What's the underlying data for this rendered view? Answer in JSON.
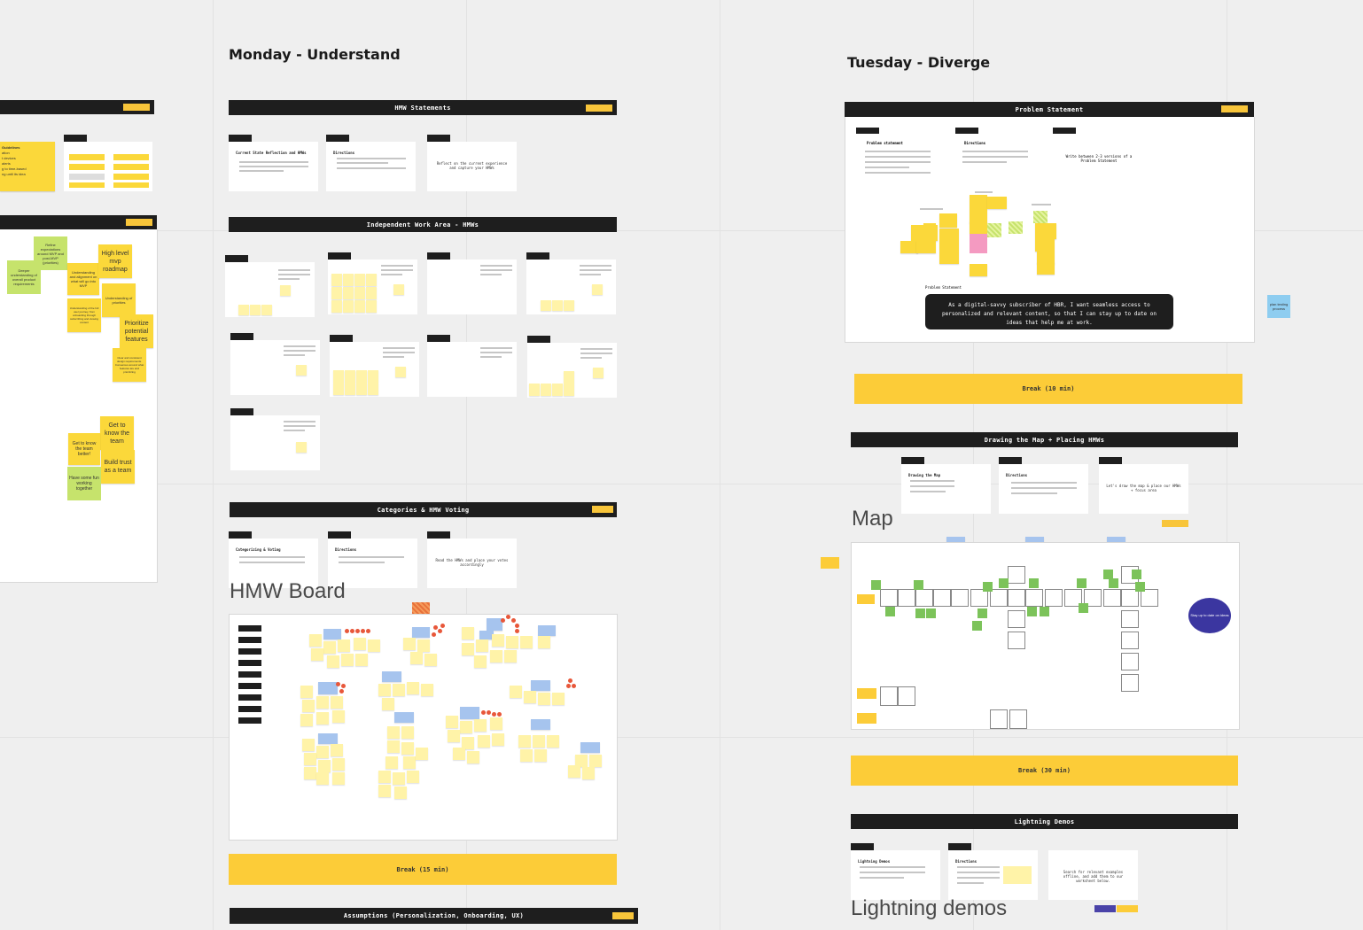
{
  "days": {
    "monday": "Monday - Understand",
    "tuesday": "Tuesday - Diverge"
  },
  "left_partial": {
    "guidelines_fragment": "Guidelines",
    "guideline_lines": [
      "ation",
      "t devices",
      "alerts",
      "g to time-based",
      "ng until its idea"
    ],
    "stickies": [
      "Refine expectations around MVP and post-MVP (priorities)",
      "Deeper understanding of overall product requirements",
      "Understanding and alignment on what will go into MVP",
      "High level mvp roadmap",
      "Understanding of priorities",
      "Understanding of the full user journey, from onboarding through subscribing and viewing content",
      "Prioritize potential features",
      "Clear and consistent design requirements. Consensus around what features are and prioritizing",
      "Get to know the team",
      "Get to know the team better!",
      "Build trust as a team",
      "Have some fun working together"
    ]
  },
  "monday": {
    "hmw_bar": "HMW Statements",
    "hmw_cards": [
      {
        "title": "Current State Reflection and HMWs",
        "content": ""
      },
      {
        "title": "Directions",
        "content": ""
      },
      {
        "title": "",
        "content": "Reflect on the current experience and capture your HMWs"
      }
    ],
    "work_bar": "Independent Work Area - HMWs",
    "categories_bar": "Categories & HMW Voting",
    "cat_cards": [
      {
        "title": "Categorizing & Voting",
        "content": ""
      },
      {
        "title": "Directions",
        "content": ""
      },
      {
        "title": "",
        "content": "Read the HMWs and place your votes accordingly"
      }
    ],
    "hmw_board_label": "HMW Board",
    "break_15": "Break (15 min)",
    "assumptions_bar": "Assumptions (Personalization, Onboarding, UX)"
  },
  "tuesday": {
    "problem_bar": "Problem Statement",
    "problem_headers": [
      "Problem statement",
      "Directions",
      ""
    ],
    "problem_direction": "Write between 2-3 versions of a Problem Statement",
    "problem_small_label": "Problem Statement",
    "problem_statement": "As a digital-savvy subscriber of HBR, I want seamless access to personalized and relevant content, so that I can stay up to date on ideas that help me at work.",
    "side_note": "plan testing process",
    "break_10": "Break (10 min)",
    "map_bar": "Drawing the Map + Placing HMWs",
    "map_cards": [
      {
        "title": "Drawing the Map",
        "content": ""
      },
      {
        "title": "Directions",
        "content": ""
      },
      {
        "title": "",
        "content": "Let's draw the map & place our HMWs + focus area"
      }
    ],
    "map_label": "Map",
    "map_circle": "Stay up to date on ideas",
    "break_30": "Break (30 min)",
    "lightning_bar": "Lightning Demos",
    "lightning_cards": [
      {
        "title": "Lightning Demos",
        "content": ""
      },
      {
        "title": "Directions",
        "content": ""
      },
      {
        "title": "",
        "content": "Search for relevant examples offline, and add them to our worksheet below."
      }
    ],
    "lightning_label": "Lightning demos"
  },
  "colors": {
    "bar": "#1e1e1e",
    "accent_yellow": "#fccc38",
    "sticky_yellow": "#fbd83a",
    "sticky_pale": "#fff3a8",
    "sticky_blue": "#a6c4ee",
    "sticky_green": "#7cc35a",
    "dot_red": "#e8573a",
    "circle_navy": "#3b36a0"
  }
}
